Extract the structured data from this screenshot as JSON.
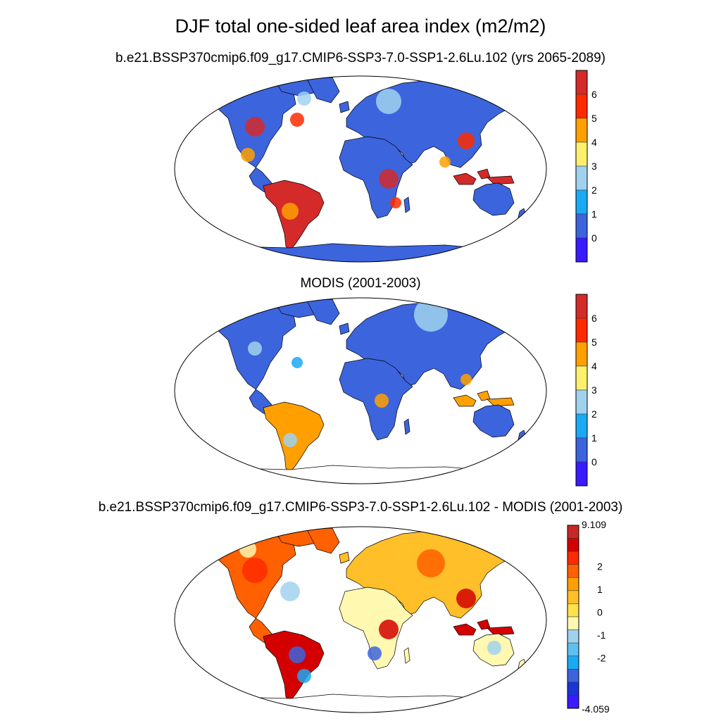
{
  "title": "DJF total one-sided leaf area index (m2/m2)",
  "panels": [
    {
      "subtitle": "b.e21.BSSP370cmip6.f09_g17.CMIP6-SSP3-7.0-SSP1-2.6Lu.102 (yrs 2065-2089)",
      "colorbar": {
        "colors": [
          "#3a1aff",
          "#3c64dd",
          "#1aa9f5",
          "#a0d2ee",
          "#fff06c",
          "#ffa000",
          "#ff2a00",
          "#d42a2a"
        ],
        "labels": [
          "0",
          "1",
          "2",
          "3",
          "4",
          "5",
          "6"
        ]
      }
    },
    {
      "subtitle": "MODIS (2001-2003)",
      "colorbar": {
        "colors": [
          "#3a1aff",
          "#3c64dd",
          "#1aa9f5",
          "#a0d2ee",
          "#fff06c",
          "#ffa000",
          "#ff2a00",
          "#d42a2a"
        ],
        "labels": [
          "0",
          "1",
          "2",
          "3",
          "4",
          "5",
          "6"
        ]
      }
    },
    {
      "subtitle": "b.e21.BSSP370cmip6.f09_g17.CMIP6-SSP3-7.0-SSP1-2.6Lu.102 - MODIS (2001-2003)",
      "colorbar": {
        "colors": [
          "#3a1aff",
          "#1a34d8",
          "#3c64dd",
          "#1aa9f5",
          "#5ec0ee",
          "#a0d2ee",
          "#fff8b0",
          "#ffe14a",
          "#ffbf28",
          "#ffa000",
          "#ff6000",
          "#ff2a00",
          "#d40000",
          "#c82828"
        ],
        "labels": [
          "9.109",
          "2",
          "1",
          "0",
          "-1",
          "-2",
          "-4.059"
        ]
      }
    }
  ]
}
